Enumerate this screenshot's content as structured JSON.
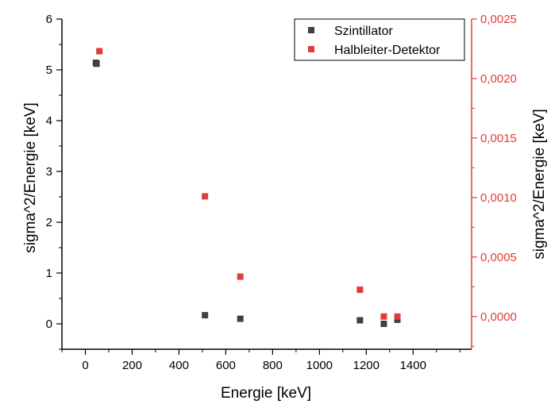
{
  "chart_data": {
    "type": "scatter",
    "xlabel": "Energie [keV]",
    "ylabel_left": "sigma^2/Energie [keV]",
    "ylabel_right": "sigma^2/Energie [keV]",
    "xlim": [
      -100,
      1650
    ],
    "ylim_left": [
      -0.5,
      6.0
    ],
    "ylim_right": [
      -0.000275,
      0.0025
    ],
    "x_ticks": [
      0,
      200,
      400,
      600,
      800,
      1000,
      1200,
      1400
    ],
    "x_tick_labels": [
      "0",
      "200",
      "400",
      "600",
      "800",
      "1000",
      "1200",
      "1400"
    ],
    "y_left_ticks": [
      0,
      1,
      2,
      3,
      4,
      5,
      6
    ],
    "y_left_tick_labels": [
      "0",
      "1",
      "2",
      "3",
      "4",
      "5",
      "6"
    ],
    "y_right_ticks": [
      0,
      0.0005,
      0.001,
      0.0015,
      0.002,
      0.0025
    ],
    "y_right_tick_labels": [
      "0,0000",
      "0,0005",
      "0,0010",
      "0,0015",
      "0,0020",
      "0,0025"
    ],
    "grid": false,
    "legend_position": "top-right",
    "series": [
      {
        "name": "Szintillator",
        "axis": "left",
        "color": "#404040",
        "marker": "square",
        "points": [
          {
            "x": 45,
            "y": 5.14
          },
          {
            "x": 48,
            "y": 5.12
          },
          {
            "x": 511,
            "y": 0.17
          },
          {
            "x": 662,
            "y": 0.1
          },
          {
            "x": 1173,
            "y": 0.07
          },
          {
            "x": 1275,
            "y": 0.0
          },
          {
            "x": 1333,
            "y": 0.08
          }
        ]
      },
      {
        "name": "Halbleiter-Detektor",
        "axis": "right",
        "color": "#e03c3c",
        "marker": "square",
        "points": [
          {
            "x": 60,
            "y": 0.00223
          },
          {
            "x": 511,
            "y": 0.00101
          },
          {
            "x": 662,
            "y": 0.000335
          },
          {
            "x": 1173,
            "y": 0.000225
          },
          {
            "x": 1275,
            "y": 0.0
          },
          {
            "x": 1333,
            "y": 0.0
          }
        ]
      }
    ]
  }
}
